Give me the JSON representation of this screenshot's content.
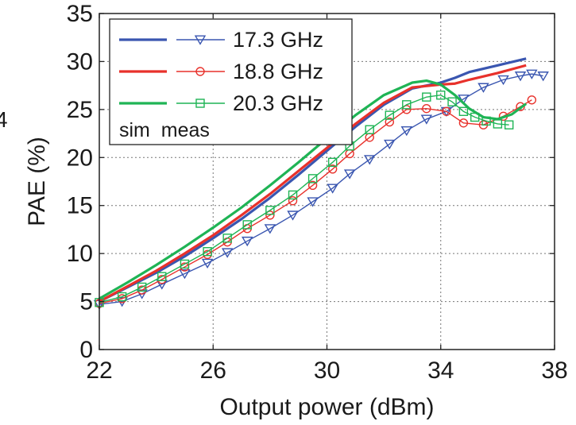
{
  "chart_data": {
    "type": "line",
    "title": "",
    "xlabel": "Output power (dBm)",
    "ylabel": "PAE (%)",
    "xlim": [
      22,
      38
    ],
    "ylim": [
      0,
      35
    ],
    "xticks": [
      22,
      26,
      30,
      34,
      38
    ],
    "yticks": [
      0,
      5,
      10,
      15,
      20,
      25,
      30,
      35
    ],
    "grid": true,
    "legend_placement": "top-left",
    "legend_footer": "sim  meas",
    "edge_label": "4",
    "series": [
      {
        "name": "17.3 GHz",
        "color": "#3a56b0",
        "sim": {
          "x": [
            22,
            23,
            24,
            25,
            26,
            27,
            28,
            29,
            30,
            31,
            32,
            33,
            34,
            34.5,
            35,
            36,
            37
          ],
          "y": [
            5,
            6.5,
            8,
            9.7,
            11.6,
            13.6,
            15.8,
            18.2,
            20.7,
            23.2,
            25.5,
            27.2,
            27.8,
            28.3,
            28.9,
            29.6,
            30.3
          ]
        },
        "meas": {
          "marker": "triangle-down",
          "x": [
            22,
            22.8,
            23.5,
            24.2,
            25,
            25.8,
            26.5,
            27.2,
            28,
            28.8,
            29.5,
            30.2,
            30.8,
            31.5,
            32.2,
            32.8,
            33.5,
            34.2,
            34.8,
            35.5,
            36.2,
            36.8,
            37.2,
            37.6
          ],
          "y": [
            4.7,
            5,
            5.8,
            6.8,
            7.9,
            9,
            10.1,
            11.3,
            12.6,
            14,
            15.4,
            16.8,
            18.3,
            19.8,
            21.4,
            22.8,
            24,
            24.8,
            26.1,
            27.3,
            28.1,
            28.5,
            28.7,
            28.5
          ]
        }
      },
      {
        "name": "18.8 GHz",
        "color": "#e8312b",
        "sim": {
          "x": [
            22,
            23,
            24,
            25,
            26,
            27,
            28,
            29,
            30,
            31,
            32,
            33,
            34,
            34.5,
            35,
            36,
            37
          ],
          "y": [
            5,
            6.6,
            8.2,
            10,
            11.9,
            14,
            16.2,
            18.6,
            21,
            23.5,
            25.7,
            27.3,
            27.6,
            27.7,
            28.1,
            28.8,
            29.6
          ]
        },
        "meas": {
          "marker": "circle",
          "x": [
            22,
            22.8,
            23.5,
            24.2,
            25,
            25.8,
            26.5,
            27.2,
            28,
            28.8,
            29.5,
            30.2,
            30.8,
            31.5,
            32.2,
            32.8,
            33.5,
            34.2,
            34.8,
            35.5,
            36.2,
            36.8,
            37.2
          ],
          "y": [
            4.8,
            5.3,
            6.2,
            7.3,
            8.6,
            9.9,
            11.2,
            12.6,
            14,
            15.5,
            17.1,
            18.8,
            20.4,
            22.1,
            23.7,
            25,
            25.1,
            24.8,
            23.6,
            23.4,
            24.3,
            25.3,
            26
          ]
        }
      },
      {
        "name": "20.3 GHz",
        "color": "#1fb455",
        "sim": {
          "x": [
            22,
            23,
            24,
            25,
            26,
            27,
            28,
            29,
            30,
            31,
            32,
            33,
            33.5,
            34,
            34.5,
            35,
            35.5,
            36,
            36.5,
            37
          ],
          "y": [
            5.3,
            7,
            8.8,
            10.7,
            12.7,
            14.8,
            17.1,
            19.5,
            22,
            24.4,
            26.5,
            27.8,
            28,
            27.6,
            26.5,
            25.1,
            24.2,
            24,
            24.5,
            25.6
          ]
        },
        "meas": {
          "marker": "square",
          "x": [
            22,
            22.8,
            23.5,
            24.2,
            25,
            25.8,
            26.5,
            27.2,
            28,
            28.8,
            29.5,
            30.2,
            30.8,
            31.5,
            32.2,
            32.8,
            33.5,
            34,
            34.4,
            34.8,
            35.2,
            35.6,
            36,
            36.4
          ],
          "y": [
            4.9,
            5.5,
            6.5,
            7.6,
            8.9,
            10.2,
            11.6,
            13,
            14.5,
            16.1,
            17.8,
            19.5,
            21.2,
            22.9,
            24.4,
            25.5,
            26.3,
            26.5,
            25.8,
            24.8,
            24.2,
            23.8,
            23.5,
            23.4
          ]
        }
      }
    ]
  }
}
